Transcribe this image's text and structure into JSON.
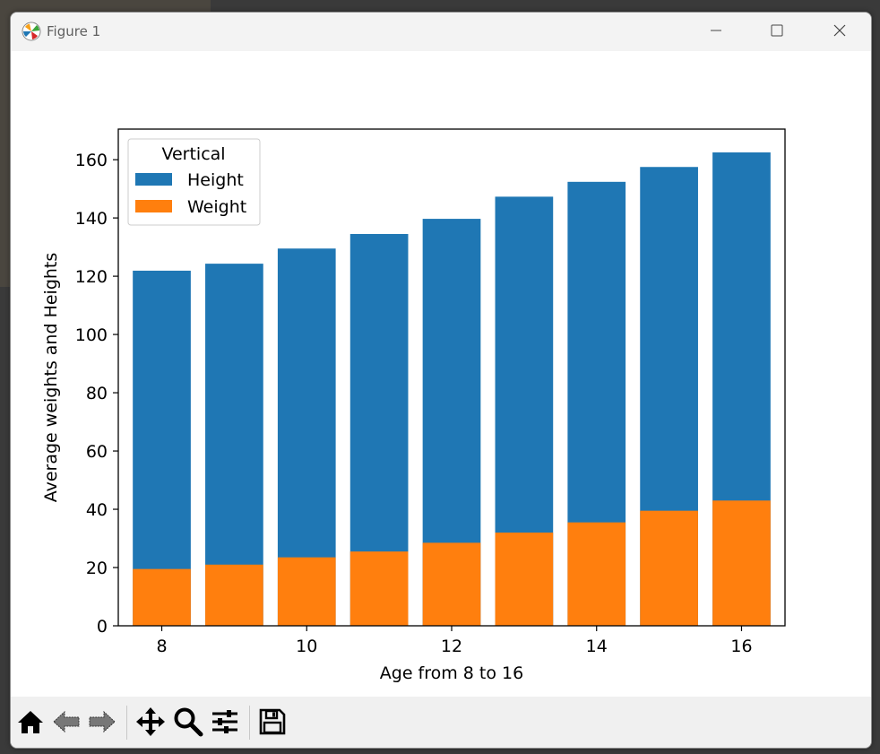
{
  "window": {
    "title": "Figure 1"
  },
  "icons": {
    "app": "matplotlib-logo-icon",
    "minimize": "minimize-icon",
    "maximize": "maximize-icon",
    "close": "close-icon"
  },
  "toolbar": {
    "buttons": [
      "home-icon",
      "back-arrow-icon",
      "forward-arrow-icon",
      "pan-icon",
      "zoom-icon",
      "configure-subplots-icon",
      "save-icon"
    ]
  },
  "chart_data": {
    "type": "bar",
    "stacked": false,
    "x": [
      8,
      9,
      10,
      11,
      12,
      13,
      14,
      15,
      16
    ],
    "series": [
      {
        "name": "Height",
        "color": "#1f77b4",
        "values": [
          121.9,
          124.3,
          129.5,
          134.5,
          139.7,
          147.3,
          152.4,
          157.5,
          162.5
        ]
      },
      {
        "name": "Weight",
        "color": "#ff7f0e",
        "values": [
          19.5,
          21.0,
          23.5,
          25.5,
          28.5,
          32.0,
          35.5,
          39.5,
          43.0
        ]
      }
    ],
    "xticks": [
      "8",
      "10",
      "12",
      "14",
      "16"
    ],
    "xtick_values": [
      8,
      10,
      12,
      14,
      16
    ],
    "yticks": [
      "0",
      "20",
      "40",
      "60",
      "80",
      "100",
      "120",
      "140",
      "160"
    ],
    "ytick_values": [
      0,
      20,
      40,
      60,
      80,
      100,
      120,
      140,
      160
    ],
    "xlabel": "Age from 8 to 16",
    "ylabel": "Average weights and Heights",
    "xlim": [
      7.4,
      16.6
    ],
    "ylim": [
      0,
      170.5
    ],
    "legend": {
      "title": "Vertical",
      "placement": "upper-left"
    },
    "grid": false
  }
}
